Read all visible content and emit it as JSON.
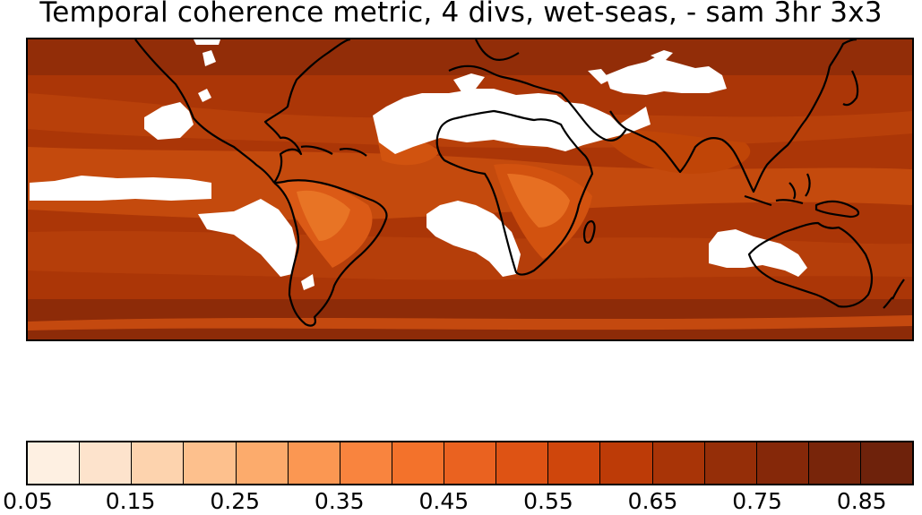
{
  "title": "Temporal coherence metric, 4 divs, wet-seas,  - sam 3hr 3x3",
  "colorbar": {
    "levels": [
      0.05,
      0.1,
      0.15,
      0.2,
      0.25,
      0.3,
      0.35,
      0.4,
      0.45,
      0.5,
      0.55,
      0.6,
      0.65,
      0.7,
      0.75,
      0.8,
      0.85,
      0.9
    ],
    "colors": [
      "#fef0e2",
      "#fde3cc",
      "#fdd3ae",
      "#fdc08d",
      "#fcab6c",
      "#fb9752",
      "#f9843e",
      "#f3722b",
      "#ea6220",
      "#de5314",
      "#cf460c",
      "#bd3b07",
      "#a83407",
      "#952e08",
      "#852809",
      "#78250a",
      "#6e220b"
    ],
    "tick_labels": [
      "0.05",
      "0.15",
      "0.25",
      "0.35",
      "0.45",
      "0.55",
      "0.65",
      "0.75",
      "0.85"
    ]
  },
  "map": {
    "projection": "cylindrical equidistant, tropics-centred band",
    "missing_color": "#ffffff",
    "coastline_color": "#000000"
  }
}
